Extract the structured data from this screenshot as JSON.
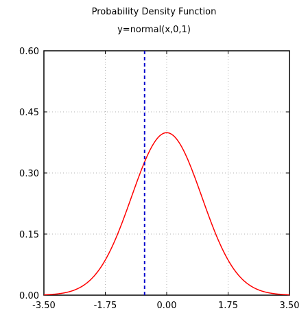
{
  "chart_data": {
    "type": "line",
    "title": "Probability Density Function",
    "subtitle": "y=normal(x,0,1)",
    "xlim": [
      -3.5,
      3.5
    ],
    "ylim": [
      0,
      0.6
    ],
    "x_ticks": [
      "-3.50",
      "-1.75",
      "0.00",
      "1.75",
      "3.50"
    ],
    "x_tick_values": [
      -3.5,
      -1.75,
      0,
      1.75,
      3.5
    ],
    "y_ticks": [
      "0.00",
      "0.15",
      "0.30",
      "0.45",
      "0.60"
    ],
    "y_tick_values": [
      0,
      0.15,
      0.3,
      0.45,
      0.6
    ],
    "grid": true,
    "series": [
      {
        "color": "#ff0000",
        "mean": 0,
        "sd": 1,
        "x": [
          -3.5,
          -3.25,
          -3.0,
          -2.75,
          -2.5,
          -2.25,
          -2.0,
          -1.75,
          -1.5,
          -1.25,
          -1.0,
          -0.75,
          -0.5,
          -0.25,
          0.0,
          0.25,
          0.5,
          0.75,
          1.0,
          1.25,
          1.5,
          1.75,
          2.0,
          2.25,
          2.5,
          2.75,
          3.0,
          3.25,
          3.5
        ],
        "y": [
          0.0009,
          0.002,
          0.0044,
          0.0091,
          0.0175,
          0.0317,
          0.054,
          0.0863,
          0.1295,
          0.1826,
          0.242,
          0.3011,
          0.3521,
          0.3867,
          0.3989,
          0.3867,
          0.3521,
          0.3011,
          0.242,
          0.1826,
          0.1295,
          0.0863,
          0.054,
          0.0317,
          0.0175,
          0.0091,
          0.0044,
          0.002,
          0.0009
        ]
      }
    ],
    "vertical_line": {
      "x": -0.63,
      "color": "#0000cc",
      "style": "dashed"
    }
  }
}
